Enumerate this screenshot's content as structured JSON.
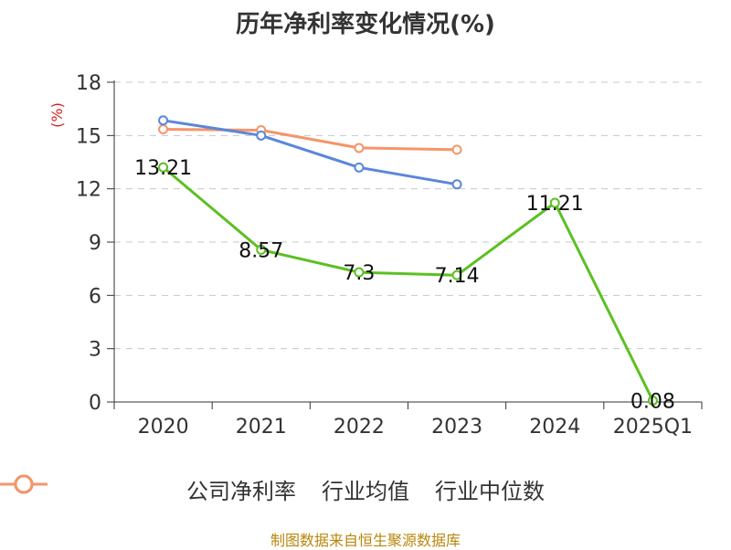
{
  "title": "历年净利率变化情况(%)",
  "source": "制图数据来自恒生聚源数据库",
  "chart_data": {
    "type": "line",
    "categories": [
      "2020",
      "2021",
      "2022",
      "2023",
      "2024",
      "2025Q1"
    ],
    "ylabel": "(%)",
    "ylim": [
      0,
      18
    ],
    "yticks": [
      0,
      3,
      6,
      9,
      12,
      15,
      18
    ],
    "grid": true,
    "legend_position": "bottom",
    "series": [
      {
        "name": "公司净利率",
        "color": "#5cc022",
        "values": [
          13.21,
          8.57,
          7.3,
          7.14,
          11.21,
          0.08
        ],
        "labels": [
          "13.21",
          "8.57",
          "7.3",
          "7.14",
          "11.21",
          "0.08"
        ]
      },
      {
        "name": "行业均值",
        "color": "#5b87d9",
        "values": [
          15.85,
          15.0,
          13.2,
          12.25,
          null,
          null
        ]
      },
      {
        "name": "行业中位数",
        "color": "#f5956a",
        "values": [
          15.35,
          15.3,
          14.3,
          14.2,
          null,
          null
        ]
      }
    ]
  }
}
